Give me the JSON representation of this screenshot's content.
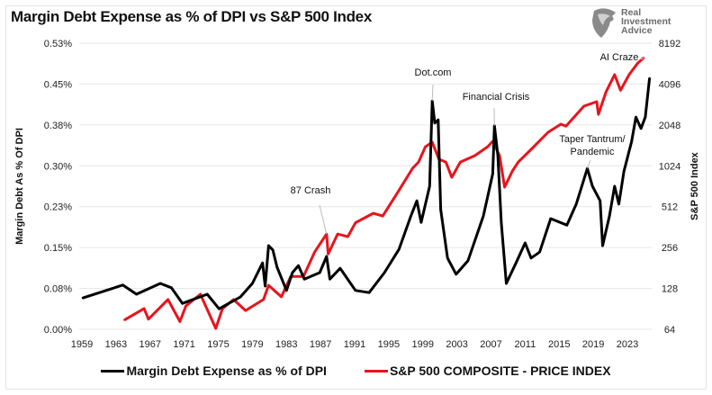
{
  "chart_data": {
    "type": "line",
    "title": "Margin Debt Expense as % of DPI vs S&P 500 Index",
    "xlabel": "",
    "ylabel": "Margin Debt As % Of DPI",
    "y2label": "S&P 500 Index",
    "xlim": [
      1959,
      2023
    ],
    "x_ticks": [
      "1959",
      "1963",
      "1967",
      "1971",
      "1975",
      "1979",
      "1983",
      "1987",
      "1991",
      "1995",
      "1999",
      "2003",
      "2007",
      "2011",
      "2015",
      "2019",
      "2023"
    ],
    "ylim": [
      0,
      0.53
    ],
    "y_ticks": [
      "0.53%",
      "0.45%",
      "0.38%",
      "0.30%",
      "0.23%",
      "0.15%",
      "0.08%",
      "0.00%"
    ],
    "y2_scale": "log2",
    "y2lim": [
      64,
      8192
    ],
    "y2_ticks": [
      "8192",
      "4096",
      "2048",
      "1024",
      "512",
      "256",
      "128",
      "64"
    ],
    "grid": true,
    "legend_position": "bottom",
    "series": [
      {
        "name": "Margin Debt Expense as % of DPI",
        "axis": "left",
        "color": "#000000",
        "x": [
          1959.1,
          1963.8,
          1965.4,
          1968.2,
          1969.5,
          1970.8,
          1973.7,
          1975.1,
          1977.6,
          1979.0,
          1980.2,
          1980.5,
          1980.9,
          1981.4,
          1981.9,
          1983.0,
          1983.7,
          1984.4,
          1985.1,
          1986.9,
          1987.7,
          1988.1,
          1989.3,
          1991.1,
          1992.7,
          1994.5,
          1996.2,
          1997.6,
          1998.3,
          1998.8,
          1999.8,
          2000.1,
          2000.4,
          2000.8,
          2001.1,
          2001.9,
          2002.9,
          2004.3,
          2006.1,
          2007.2,
          2007.4,
          2007.8,
          2008.2,
          2008.8,
          2009.9,
          2011.0,
          2011.7,
          2012.7,
          2014.0,
          2015.9,
          2017.0,
          2018.3,
          2018.9,
          2019.8,
          2020.1,
          2020.9,
          2021.5,
          2022.0,
          2022.6,
          2023.5,
          2024.0,
          2024.6,
          2025.1,
          2025.6
        ],
        "values": [
          0.058,
          0.082,
          0.065,
          0.085,
          0.077,
          0.048,
          0.065,
          0.038,
          0.06,
          0.085,
          0.123,
          0.08,
          0.155,
          0.147,
          0.115,
          0.072,
          0.105,
          0.118,
          0.093,
          0.105,
          0.135,
          0.093,
          0.113,
          0.072,
          0.068,
          0.105,
          0.148,
          0.21,
          0.238,
          0.198,
          0.265,
          0.423,
          0.382,
          0.388,
          0.222,
          0.132,
          0.102,
          0.127,
          0.21,
          0.288,
          0.377,
          0.322,
          0.198,
          0.085,
          0.122,
          0.16,
          0.132,
          0.143,
          0.205,
          0.193,
          0.232,
          0.298,
          0.265,
          0.238,
          0.155,
          0.21,
          0.265,
          0.232,
          0.293,
          0.348,
          0.393,
          0.372,
          0.393,
          0.465
        ]
      },
      {
        "name": "S&P 500 COMPOSITE - PRICE INDEX",
        "axis": "right",
        "color": "#e8141c",
        "x": [
          1964.0,
          1966.3,
          1966.8,
          1969.1,
          1970.5,
          1971.2,
          1972.9,
          1974.7,
          1975.5,
          1976.8,
          1978.2,
          1980.3,
          1980.9,
          1982.4,
          1983.5,
          1985.0,
          1986.3,
          1987.7,
          1987.9,
          1989.0,
          1990.2,
          1991.1,
          1993.2,
          1994.3,
          1996.1,
          1997.8,
          1998.5,
          1999.3,
          2000.1,
          2000.9,
          2001.7,
          2002.4,
          2003.4,
          2005.1,
          2006.6,
          2007.2,
          2008.0,
          2008.6,
          2009.5,
          2010.2,
          2011.6,
          2013.7,
          2015.2,
          2015.8,
          2017.9,
          2019.4,
          2019.6,
          2020.5,
          2021.5,
          2022.2,
          2023.2,
          2024.2,
          2024.9
        ],
        "values": [
          75,
          91,
          76,
          106,
          73,
          95,
          116,
          65,
          91,
          106,
          88,
          106,
          135,
          111,
          157,
          157,
          237,
          322,
          230,
          322,
          308,
          390,
          458,
          437,
          660,
          983,
          1092,
          1415,
          1528,
          1145,
          1092,
          842,
          1092,
          1217,
          1415,
          1553,
          1217,
          713,
          936,
          1092,
          1333,
          1808,
          2076,
          2006,
          2817,
          3040,
          2452,
          3590,
          4803,
          3691,
          4803,
          5830,
          6380
        ]
      }
    ],
    "annotations": [
      {
        "text": "87 Crash",
        "x": 1987.7,
        "series": 1
      },
      {
        "text": "Dot.com",
        "x": 2000.1,
        "series": 0
      },
      {
        "text": "Financial Crisis",
        "x": 2007.4,
        "series": 0
      },
      {
        "text": "Taper Tantrum/",
        "x": 2018.3,
        "series": 0
      },
      {
        "text": "Pandemic",
        "x": 2018.3,
        "series": 0
      },
      {
        "text": "AI Craze",
        "x": 2024.9,
        "series": 1
      }
    ]
  },
  "logo": {
    "line1": "Real",
    "line2": "Investment",
    "line3": "Advice"
  }
}
